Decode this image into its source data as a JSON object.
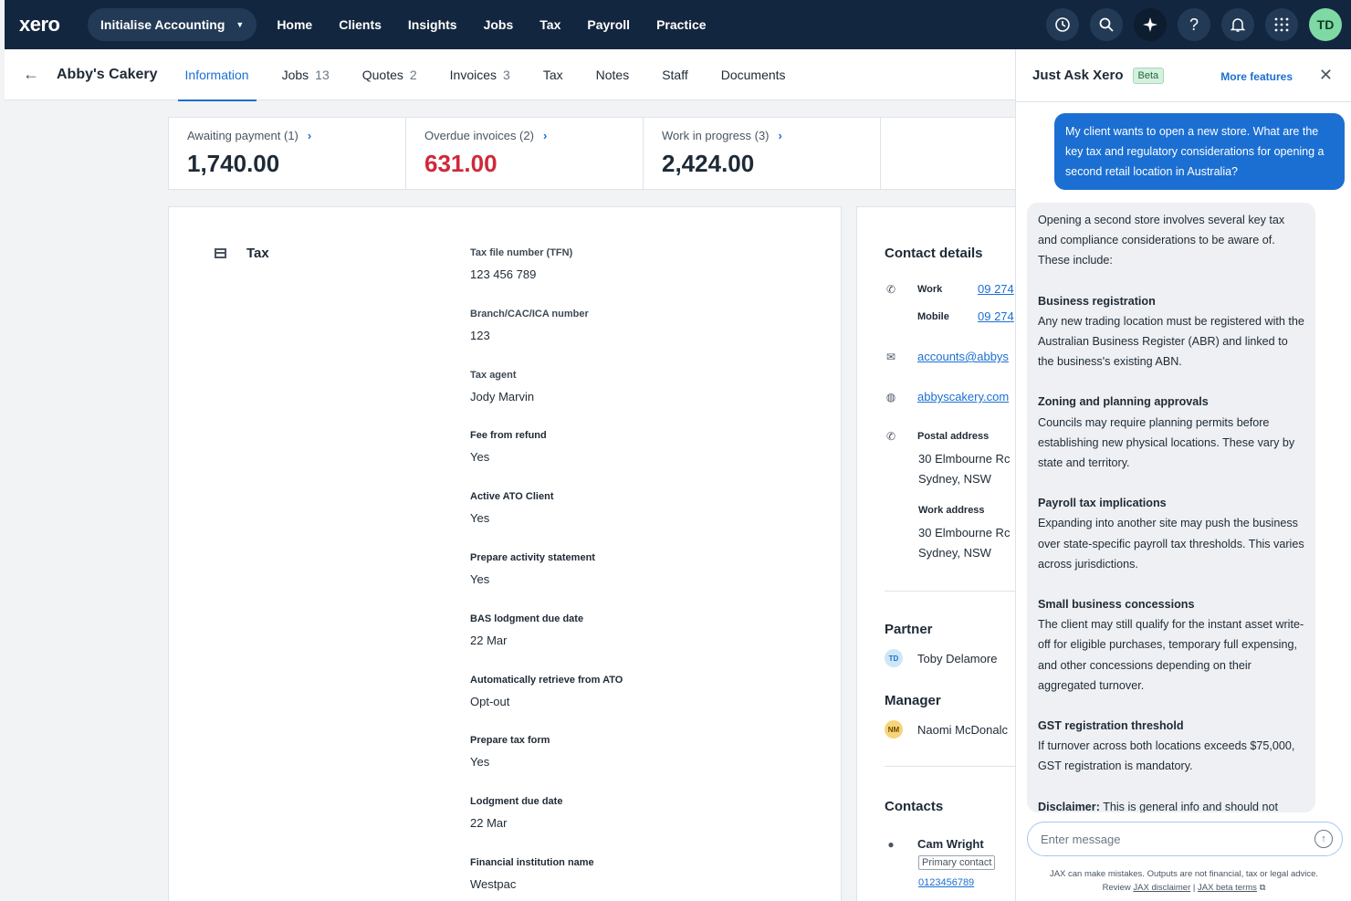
{
  "topnav": {
    "logo": "xero",
    "org": "Initialise Accounting",
    "items": [
      "Home",
      "Clients",
      "Insights",
      "Jobs",
      "Tax",
      "Payroll",
      "Practice"
    ],
    "avatar": "TD"
  },
  "client": {
    "name": "Abby's Cakery",
    "tabs": [
      {
        "label": "Information",
        "count": ""
      },
      {
        "label": "Jobs",
        "count": "13"
      },
      {
        "label": "Quotes",
        "count": "2"
      },
      {
        "label": "Invoices",
        "count": "3"
      },
      {
        "label": "Tax",
        "count": ""
      },
      {
        "label": "Notes",
        "count": ""
      },
      {
        "label": "Staff",
        "count": ""
      },
      {
        "label": "Documents",
        "count": ""
      }
    ]
  },
  "summary": [
    {
      "label": "Awaiting payment (1)",
      "value": "1,740.00"
    },
    {
      "label": "Overdue invoices (2)",
      "value": "631.00"
    },
    {
      "label": "Work in progress (3)",
      "value": "2,424.00"
    }
  ],
  "tax": {
    "title": "Tax",
    "fields": [
      {
        "label": "Tax file number (TFN)",
        "value": "123 456 789"
      },
      {
        "label": "Branch/CAC/ICA number",
        "value": "123"
      },
      {
        "label": "Tax agent",
        "value": "Jody Marvin"
      },
      {
        "label": "Fee from refund",
        "value": "Yes"
      },
      {
        "label": "Active ATO Client",
        "value": "Yes"
      },
      {
        "label": "Prepare activity statement",
        "value": "Yes"
      },
      {
        "label": "BAS lodgment due date",
        "value": "22 Mar"
      },
      {
        "label": "Automatically retrieve from ATO",
        "value": "Opt-out"
      },
      {
        "label": "Prepare tax form",
        "value": "Yes"
      },
      {
        "label": "Lodgment due date",
        "value": "22 Mar"
      },
      {
        "label": "Financial institution name",
        "value": "Westpac"
      }
    ]
  },
  "contact": {
    "title": "Contact details",
    "work_label": "Work",
    "work_value": "09 274",
    "mobile_label": "Mobile",
    "mobile_value": "09 274",
    "email": "accounts@abbys",
    "website": "abbyscakery.com",
    "postal_label": "Postal address",
    "postal_line1": "30 Elmbourne Rc",
    "postal_line2": "Sydney, NSW",
    "work_addr_label": "Work address",
    "work_addr_line1": "30 Elmbourne Rc",
    "work_addr_line2": "Sydney, NSW",
    "partner_title": "Partner",
    "partner_initials": "TD",
    "partner_name": "Toby Delamore",
    "manager_title": "Manager",
    "manager_initials": "NM",
    "manager_name": "Naomi McDonalc",
    "contacts_title": "Contacts",
    "contact_name": "Cam Wright",
    "contact_badge": "Primary contact",
    "contact_phone": "0123456789"
  },
  "jax": {
    "title": "Just Ask Xero",
    "badge": "Beta",
    "more": "More features",
    "user_message": "My client wants to open a new store. What are the key tax and regulatory considerations for opening a second retail location in Australia?",
    "intro": "Opening a second store involves several key tax and compliance considerations to be aware of. These include:",
    "sections": [
      {
        "heading": "Business registration",
        "body": "Any new trading location must be registered with the Australian Business Register (ABR) and linked to the business's existing ABN."
      },
      {
        "heading": "Zoning and planning approvals",
        "body": "Councils may require planning permits before establishing new physical locations. These vary by state and territory."
      },
      {
        "heading": "Payroll tax implications",
        "body": "Expanding into another site may push the business over state-specific payroll tax thresholds. This varies across jurisdictions."
      },
      {
        "heading": "Small business concessions",
        "body": "The client may still qualify for the instant asset write-off for eligible purchases, temporary full expensing, and other concessions depending on their aggregated turnover."
      },
      {
        "heading": "GST registration threshold",
        "body": "If turnover across both locations exceeds $75,000, GST registration is mandatory."
      }
    ],
    "disclaimer_lead": "Disclaimer:",
    "disclaimer_text": "This is general info and should not",
    "input_placeholder": "Enter message",
    "footer_line1": "JAX can make mistakes. Outputs are not financial, tax or legal advice.",
    "footer_review": "Review",
    "footer_link1": "JAX disclaimer",
    "footer_sep": "|",
    "footer_link2": "JAX beta terms"
  },
  "colors": {
    "nav": "#13263f",
    "accent": "#1b6fd2",
    "overdue": "#d0283b"
  }
}
